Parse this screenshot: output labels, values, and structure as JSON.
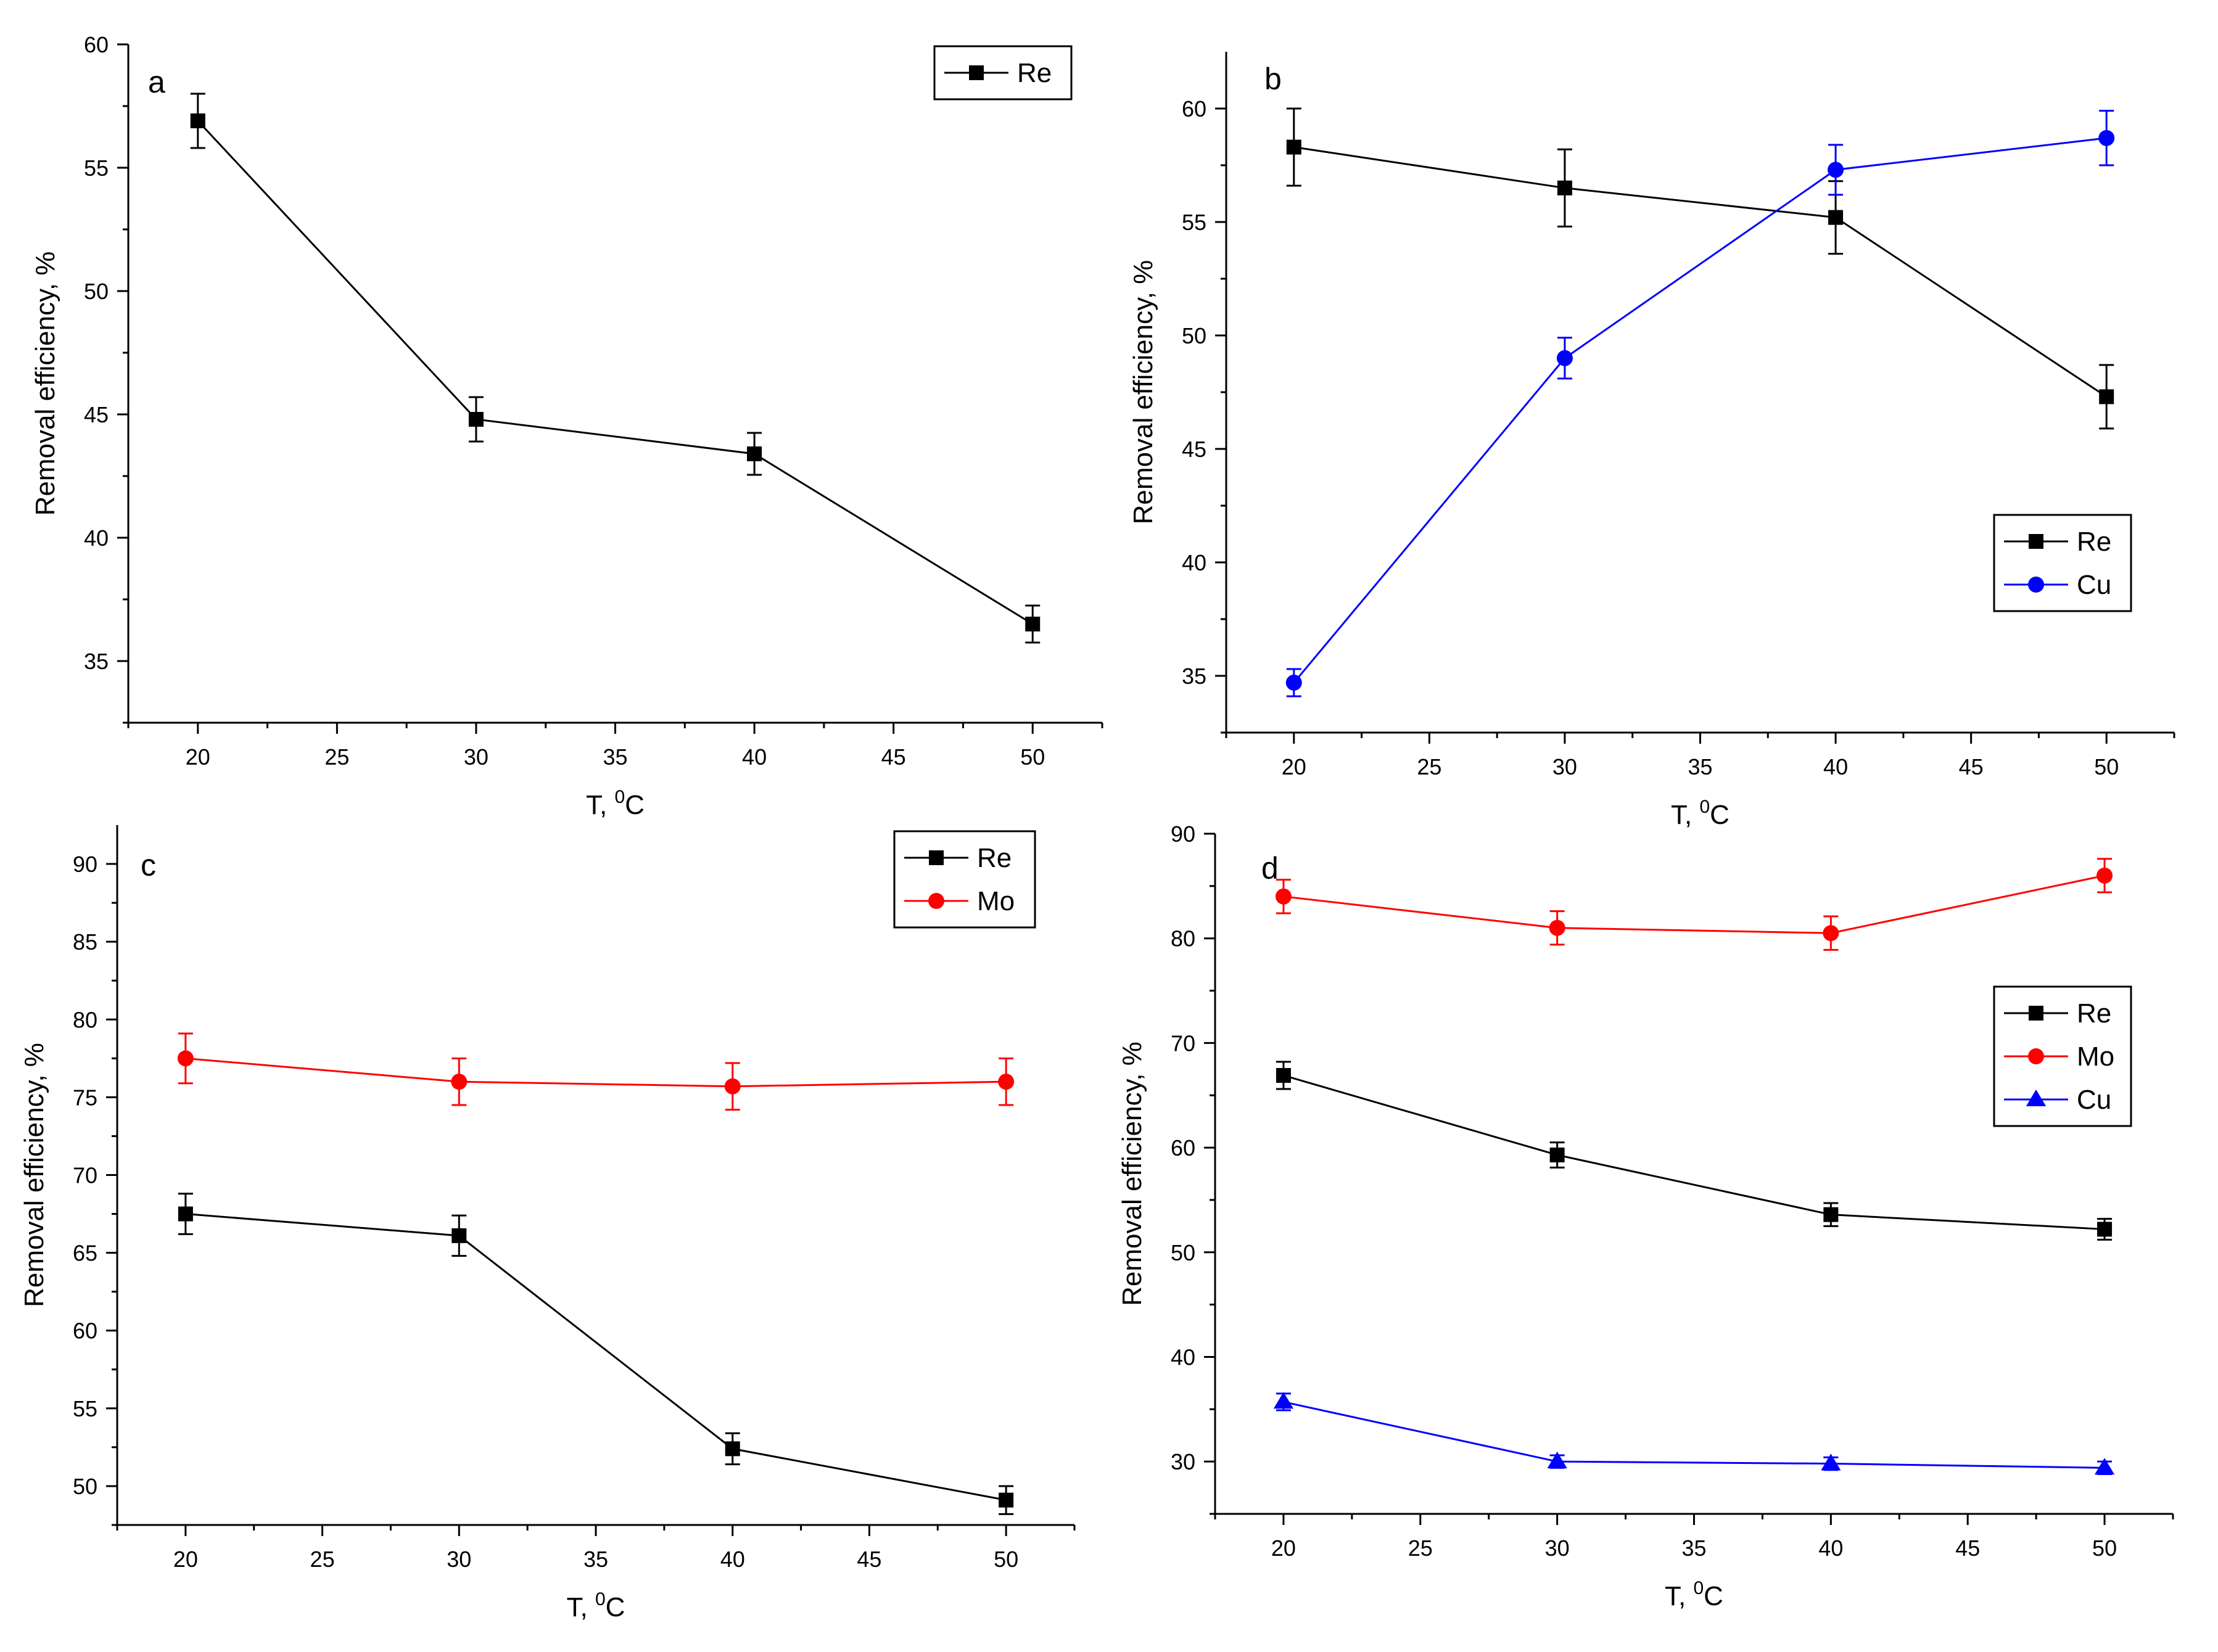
{
  "figure": {
    "description_units": "Removal efficiency (%) vs temperature (°C)"
  },
  "chart_data": [
    {
      "id": "a",
      "type": "line",
      "panel_label": "a",
      "xlabel": "T, ",
      "xlabel_sup": "0",
      "xlabel_unit": "C",
      "ylabel": "Removal efficiency, %",
      "xlim": [
        17.5,
        52.5
      ],
      "ylim": [
        32.5,
        60
      ],
      "xticks": [
        20,
        25,
        30,
        35,
        40,
        45,
        50
      ],
      "yticks": [
        35,
        40,
        45,
        50,
        55,
        60
      ],
      "legend_position": "top-right",
      "x": [
        20,
        30,
        40,
        50
      ],
      "series": [
        {
          "name": "Re",
          "color": "#000000",
          "marker": "square",
          "values": [
            56.9,
            44.8,
            43.4,
            36.5
          ],
          "errors": [
            1.1,
            0.9,
            0.85,
            0.75
          ]
        }
      ]
    },
    {
      "id": "b",
      "type": "line",
      "panel_label": "b",
      "xlabel": "T, ",
      "xlabel_sup": "0",
      "xlabel_unit": "C",
      "ylabel": "Removal efficiency, %",
      "xlim": [
        17.5,
        52.5
      ],
      "ylim": [
        32.5,
        62.5
      ],
      "xticks": [
        20,
        25,
        30,
        35,
        40,
        45,
        50
      ],
      "yticks": [
        35,
        40,
        45,
        50,
        55,
        60
      ],
      "legend_position": "right",
      "x": [
        20,
        30,
        40,
        50
      ],
      "series": [
        {
          "name": "Re",
          "color": "#000000",
          "marker": "square",
          "values": [
            58.3,
            56.5,
            55.2,
            47.3
          ],
          "errors": [
            1.7,
            1.7,
            1.6,
            1.4
          ]
        },
        {
          "name": "Cu",
          "color": "#0000ff",
          "marker": "circle",
          "values": [
            34.7,
            49.0,
            57.3,
            58.7
          ],
          "errors": [
            0.6,
            0.9,
            1.1,
            1.2
          ]
        }
      ]
    },
    {
      "id": "c",
      "type": "line",
      "panel_label": "c",
      "xlabel": "T, ",
      "xlabel_sup": "0",
      "xlabel_unit": "C",
      "ylabel": "Removal efficiency, %",
      "xlim": [
        17.5,
        52.5
      ],
      "ylim": [
        47.5,
        92.5
      ],
      "xticks": [
        20,
        25,
        30,
        35,
        40,
        45,
        50
      ],
      "yticks": [
        50,
        55,
        60,
        65,
        70,
        75,
        80,
        85,
        90
      ],
      "legend_position": "top-right",
      "x": [
        20,
        30,
        40,
        50
      ],
      "series": [
        {
          "name": "Re",
          "color": "#000000",
          "marker": "square",
          "values": [
            67.5,
            66.1,
            52.4,
            49.1
          ],
          "errors": [
            1.3,
            1.3,
            1.0,
            0.9
          ]
        },
        {
          "name": "Mo",
          "color": "#ff0000",
          "marker": "circle",
          "values": [
            77.5,
            76.0,
            75.7,
            76.0
          ],
          "errors": [
            1.6,
            1.5,
            1.5,
            1.5
          ]
        }
      ]
    },
    {
      "id": "d",
      "type": "line",
      "panel_label": "d",
      "xlabel": "T, ",
      "xlabel_sup": "0",
      "xlabel_unit": "C",
      "ylabel": "Removal efficiency, %",
      "xlim": [
        17.5,
        52.5
      ],
      "ylim": [
        25,
        90
      ],
      "xticks": [
        20,
        25,
        30,
        35,
        40,
        45,
        50
      ],
      "yticks": [
        30,
        40,
        50,
        60,
        70,
        80,
        90
      ],
      "legend_position": "right",
      "x": [
        20,
        30,
        40,
        50
      ],
      "series": [
        {
          "name": "Re",
          "color": "#000000",
          "marker": "square",
          "values": [
            66.9,
            59.3,
            53.6,
            52.2
          ],
          "errors": [
            1.3,
            1.2,
            1.1,
            1.0
          ]
        },
        {
          "name": "Mo",
          "color": "#ff0000",
          "marker": "circle",
          "values": [
            84.0,
            81.0,
            80.5,
            86.0
          ],
          "errors": [
            1.6,
            1.6,
            1.6,
            1.6
          ]
        },
        {
          "name": "Cu",
          "color": "#0000ff",
          "marker": "triangle",
          "values": [
            35.7,
            30.0,
            29.8,
            29.4
          ],
          "errors": [
            0.8,
            0.6,
            0.6,
            0.6
          ]
        }
      ]
    }
  ]
}
